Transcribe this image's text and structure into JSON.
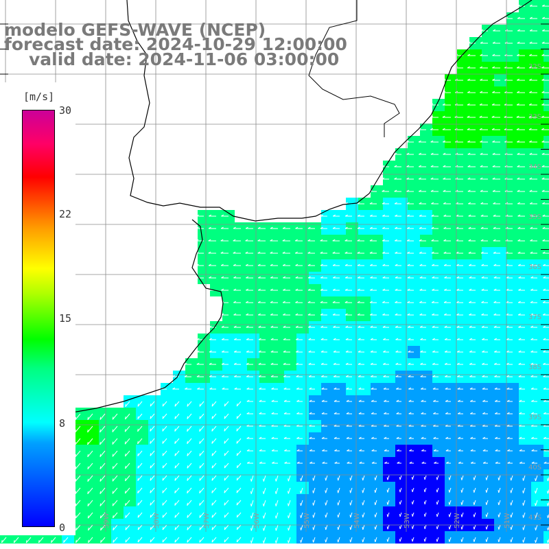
{
  "title": {
    "model": "modelo GEFS-WAVE (NCEP)",
    "forecast": "forecast date: 2024-10-29 12:00:00",
    "valid": "valid date: 2024-11-06 03:00:00"
  },
  "colorbar": {
    "unit": "[m/s]",
    "ticks": [
      "30",
      "22",
      "15",
      "8",
      "0"
    ],
    "tick_values": [
      30,
      22,
      15,
      8,
      0
    ],
    "range": [
      0,
      30
    ],
    "colors": [
      "#0000ff",
      "#00a0ff",
      "#00ffff",
      "#00ff80",
      "#00ff00",
      "#b0ff00",
      "#ffff00",
      "#ff9900",
      "#ff0000",
      "#ff0066",
      "#cc0099"
    ]
  },
  "map": {
    "latitude_labels": [
      "32S",
      "33S",
      "34S",
      "35S",
      "36S",
      "37S",
      "38S",
      "39S",
      "40S",
      "41S"
    ],
    "longitude_labels": [
      "61W",
      "60W",
      "59W",
      "58W",
      "57W",
      "56W",
      "55W",
      "54W",
      "53W",
      "52W",
      "51W"
    ],
    "field": "wind speed and direction over ocean",
    "arrow_color": "#ffffff",
    "land_color": "#ffffff",
    "coastline_color": "#000000",
    "grid_color": "#8a8a8a"
  }
}
